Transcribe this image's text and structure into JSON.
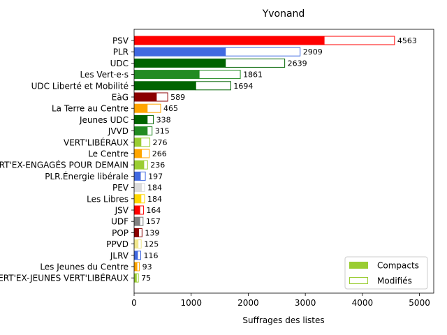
{
  "chart_data": {
    "type": "bar",
    "orientation": "horizontal",
    "stacked": true,
    "title": "Yvonand",
    "xlabel": "Suffrages des listes",
    "ylabel": "",
    "xlim": [
      0,
      5250
    ],
    "xticks": [
      0,
      1000,
      2000,
      3000,
      4000,
      5000
    ],
    "grid": false,
    "legend_position": "lower-right",
    "legend": [
      {
        "label": "Compacts",
        "style": "filled",
        "color": "#9acd32"
      },
      {
        "label": "Modifiés",
        "style": "outline",
        "color": "#9acd32"
      }
    ],
    "categories": [
      "PSV",
      "PLR",
      "UDC",
      "Les Vert·e·s",
      "UDC Liberté et Mobilité",
      "EàG",
      "La Terre au Centre",
      "Jeunes UDC",
      "JVVD",
      "VERT'LIBÉRAUX",
      "Le Centre",
      "VERT'EX-ENGAGÉS POUR DEMAIN",
      "PLR.Énergie libérale",
      "PEV",
      "Les Libres",
      "JSV",
      "UDF",
      "POP",
      "PPVD",
      "JLRV",
      "Les Jeunes du Centre",
      "VERT'EX-JEUNES VERT'LIBÉRAUX"
    ],
    "colors": [
      "#ff0000",
      "#4169e1",
      "#006400",
      "#228b22",
      "#006400",
      "#8b0000",
      "#ffa500",
      "#006400",
      "#228b22",
      "#9acd32",
      "#ffa500",
      "#9acd32",
      "#4169e1",
      "#dcdcdc",
      "#ffd700",
      "#ff0000",
      "#808080",
      "#8b0000",
      "#f0e68c",
      "#4169e1",
      "#ffa500",
      "#9acd32"
    ],
    "series": [
      {
        "name": "Compacts",
        "values": [
          3330,
          1600,
          1600,
          1140,
          1080,
          390,
          230,
          230,
          230,
          120,
          130,
          170,
          110,
          130,
          120,
          100,
          100,
          80,
          70,
          60,
          50,
          40
        ]
      },
      {
        "name": "Modifiés",
        "values": [
          1233,
          1309,
          1039,
          721,
          614,
          199,
          235,
          108,
          85,
          156,
          136,
          66,
          87,
          54,
          64,
          64,
          57,
          59,
          55,
          56,
          43,
          35
        ]
      }
    ],
    "totals": [
      4563,
      2909,
      2639,
      1861,
      1694,
      589,
      465,
      338,
      315,
      276,
      266,
      236,
      197,
      184,
      184,
      164,
      157,
      139,
      125,
      116,
      93,
      75
    ]
  }
}
